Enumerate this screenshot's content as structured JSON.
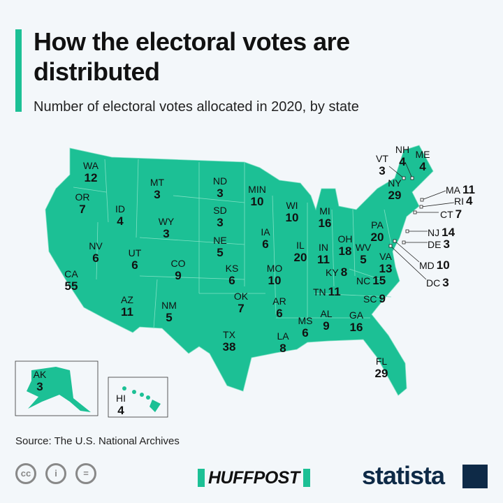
{
  "title": "How the electoral votes are distributed",
  "subtitle": "Number of electoral votes allocated in 2020, by state",
  "source": "Source: The U.S. National Archives",
  "brand": {
    "huffpost": "HUFFPOST",
    "statista": "statista"
  },
  "license_icons": [
    "cc-icon",
    "attribution-icon",
    "no-derivatives-icon"
  ],
  "colors": {
    "map": "#1cc095",
    "accent": "#1cc095",
    "statista": "#0e2a47"
  },
  "states": [
    {
      "abbr": "WA",
      "votes": "12"
    },
    {
      "abbr": "OR",
      "votes": "7"
    },
    {
      "abbr": "ID",
      "votes": "4"
    },
    {
      "abbr": "MT",
      "votes": "3"
    },
    {
      "abbr": "ND",
      "votes": "3"
    },
    {
      "abbr": "SD",
      "votes": "3"
    },
    {
      "abbr": "WY",
      "votes": "3"
    },
    {
      "abbr": "NE",
      "votes": "5"
    },
    {
      "abbr": "MIN",
      "votes": "10"
    },
    {
      "abbr": "WI",
      "votes": "10"
    },
    {
      "abbr": "MI",
      "votes": "16"
    },
    {
      "abbr": "IA",
      "votes": "6"
    },
    {
      "abbr": "NV",
      "votes": "6"
    },
    {
      "abbr": "UT",
      "votes": "6"
    },
    {
      "abbr": "CO",
      "votes": "9"
    },
    {
      "abbr": "KS",
      "votes": "6"
    },
    {
      "abbr": "MO",
      "votes": "10"
    },
    {
      "abbr": "IL",
      "votes": "20"
    },
    {
      "abbr": "IN",
      "votes": "11"
    },
    {
      "abbr": "OH",
      "votes": "18"
    },
    {
      "abbr": "KY",
      "votes": "8"
    },
    {
      "abbr": "WV",
      "votes": "5"
    },
    {
      "abbr": "CA",
      "votes": "55"
    },
    {
      "abbr": "AZ",
      "votes": "11"
    },
    {
      "abbr": "NM",
      "votes": "5"
    },
    {
      "abbr": "OK",
      "votes": "7"
    },
    {
      "abbr": "AR",
      "votes": "6"
    },
    {
      "abbr": "TN",
      "votes": "11"
    },
    {
      "abbr": "NC",
      "votes": "15"
    },
    {
      "abbr": "SC",
      "votes": "9"
    },
    {
      "abbr": "TX",
      "votes": "38"
    },
    {
      "abbr": "LA",
      "votes": "8"
    },
    {
      "abbr": "MS",
      "votes": "6"
    },
    {
      "abbr": "AL",
      "votes": "9"
    },
    {
      "abbr": "GA",
      "votes": "16"
    },
    {
      "abbr": "FL",
      "votes": "29"
    },
    {
      "abbr": "VA",
      "votes": "13"
    },
    {
      "abbr": "PA",
      "votes": "20"
    },
    {
      "abbr": "NY",
      "votes": "29"
    },
    {
      "abbr": "VT",
      "votes": "3"
    },
    {
      "abbr": "NH",
      "votes": "4"
    },
    {
      "abbr": "ME",
      "votes": "4"
    },
    {
      "abbr": "MA",
      "votes": "11"
    },
    {
      "abbr": "RI",
      "votes": "4"
    },
    {
      "abbr": "CT",
      "votes": "7"
    },
    {
      "abbr": "NJ",
      "votes": "14"
    },
    {
      "abbr": "DE",
      "votes": "3"
    },
    {
      "abbr": "MD",
      "votes": "10"
    },
    {
      "abbr": "DC",
      "votes": "3"
    },
    {
      "abbr": "AK",
      "votes": "3"
    },
    {
      "abbr": "HI",
      "votes": "4"
    }
  ]
}
